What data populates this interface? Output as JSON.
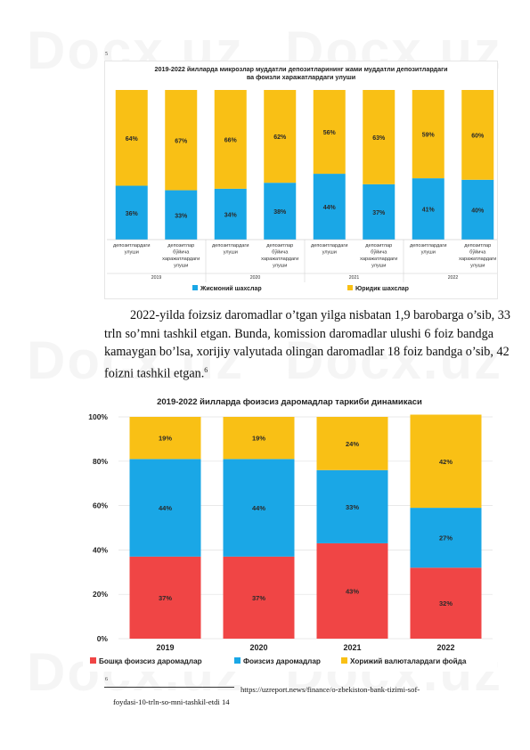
{
  "page": {
    "watermark": "Docx.uz",
    "fig1_ref": "5",
    "fig2_ref": "6",
    "paragraph_lines": [
      "2022-yilda foizsiz daromadlar o’tgan yilga nisbatan 1,9 barobarga o’sib, 33",
      "trln so’mni tashkil etgan. Bunda, komission daromadlar ulushi 6 foiz bandga",
      "kamaygan bo’lsa, xorijiy valyutada olingan daromadlar 18 foiz bandga o’sib, 42",
      "foizni tashkil etgan."
    ],
    "paragraph_footnote_mark": "6",
    "footnote_url": "https://uzreport.news/finance/o-zbekiston-bank-tizimi-sof-",
    "footnote_cont": "foydasi-10-trln-so-mni-tashkil-etdi",
    "page_number": "14"
  },
  "chart_data": [
    {
      "type": "bar",
      "stacked": true,
      "title": "2019-2022 йилларда микрозлар муддатли депозитларининг жами муддатли депозитлардаги",
      "subtitle": "ва фоизли харажатлардаги улуши",
      "categories": [
        "депозитлардаги улуши",
        "депозитлар бўйича харажатлардаги улуши",
        "депозитлардаги улуши",
        "депозитлар бўйича харажатлардаги улуши",
        "депозитлардаги улуши",
        "депозитлар бўйича харажатлардаги улуши",
        "депозитлардаги улуши",
        "депозитлар бўйича харажатлардаги улуши"
      ],
      "category_lines": [
        [
          "депозитлардаги",
          "улуши"
        ],
        [
          "депозитлар",
          "бўйича",
          "харажатлардаги",
          "улуши"
        ],
        [
          "депозитлардаги",
          "улуши"
        ],
        [
          "депозитлар",
          "бўйича",
          "харажатлардаги",
          "улуши"
        ],
        [
          "депозитлардаги",
          "улуши"
        ],
        [
          "депозитлар",
          "бўйича",
          "харажатлардаги",
          "улуши"
        ],
        [
          "депозитлардаги",
          "улуши"
        ],
        [
          "депозитлар",
          "бўйича",
          "харажатлардаги",
          "улуши"
        ]
      ],
      "groups": [
        "2019",
        "2020",
        "2021",
        "2022"
      ],
      "series": [
        {
          "name": "Жисмоний шахслар",
          "color": "#1aa7e6",
          "values": [
            36,
            33,
            34,
            38,
            44,
            37,
            41,
            40
          ],
          "labels": [
            "36%",
            "33%",
            "34%",
            "38%",
            "44%",
            "37%",
            "41%",
            "40%"
          ]
        },
        {
          "name": "Юридик шахслар",
          "color": "#f9c015",
          "values": [
            64,
            67,
            66,
            62,
            56,
            63,
            59,
            60
          ],
          "labels": [
            "64%",
            "67%",
            "66%",
            "62%",
            "56%",
            "63%",
            "59%",
            "60%"
          ]
        }
      ],
      "legend_position": "bottom"
    },
    {
      "type": "bar",
      "stacked": true,
      "title": "2019-2022 йилларда фоизсиз даромадлар таркиби динамикаси",
      "categories": [
        "2019",
        "2020",
        "2021",
        "2022"
      ],
      "y_ticks": [
        "0%",
        "20%",
        "40%",
        "60%",
        "80%",
        "100%"
      ],
      "ylim": [
        0,
        100
      ],
      "series": [
        {
          "name": "Бошқа фоизсиз даромадлар",
          "color": "#f04545",
          "values": [
            37,
            37,
            43,
            32
          ],
          "labels": [
            "37%",
            "37%",
            "43%",
            "32%"
          ]
        },
        {
          "name": "Фоизсиз даромадлар",
          "color": "#1aa7e6",
          "values": [
            44,
            44,
            33,
            27
          ],
          "labels": [
            "44%",
            "44%",
            "33%",
            "27%"
          ]
        },
        {
          "name": "Хорижий валюталардаги фойда",
          "color": "#f9c015",
          "values": [
            19,
            19,
            24,
            42
          ],
          "labels": [
            "19%",
            "19%",
            "24%",
            "42%"
          ]
        }
      ],
      "legend_position": "bottom"
    }
  ]
}
